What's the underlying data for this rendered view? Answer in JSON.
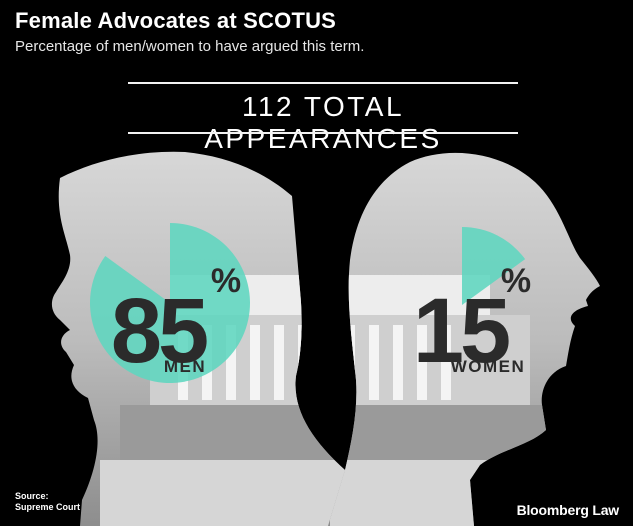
{
  "header": {
    "title": "Female Advocates at SCOTUS",
    "subtitle": "Percentage of men/women to have argued this term.",
    "total": "112 TOTAL APPEARANCES"
  },
  "chart_data": {
    "type": "pie",
    "title": "Female Advocates at SCOTUS",
    "subtitle": "Percentage of men/women to have argued this term.",
    "total_appearances": 112,
    "slices": [
      {
        "label": "MEN",
        "value": 85,
        "display": "85"
      },
      {
        "label": "WOMEN",
        "value": 15,
        "display": "15"
      }
    ],
    "unit": "%",
    "colors": {
      "wedge": "#5fd6bf",
      "background": "#000000",
      "text": "#2b2b2b"
    }
  },
  "footer": {
    "source": [
      "Source:",
      "Supreme Court"
    ],
    "brand": "Bloomberg Law"
  }
}
